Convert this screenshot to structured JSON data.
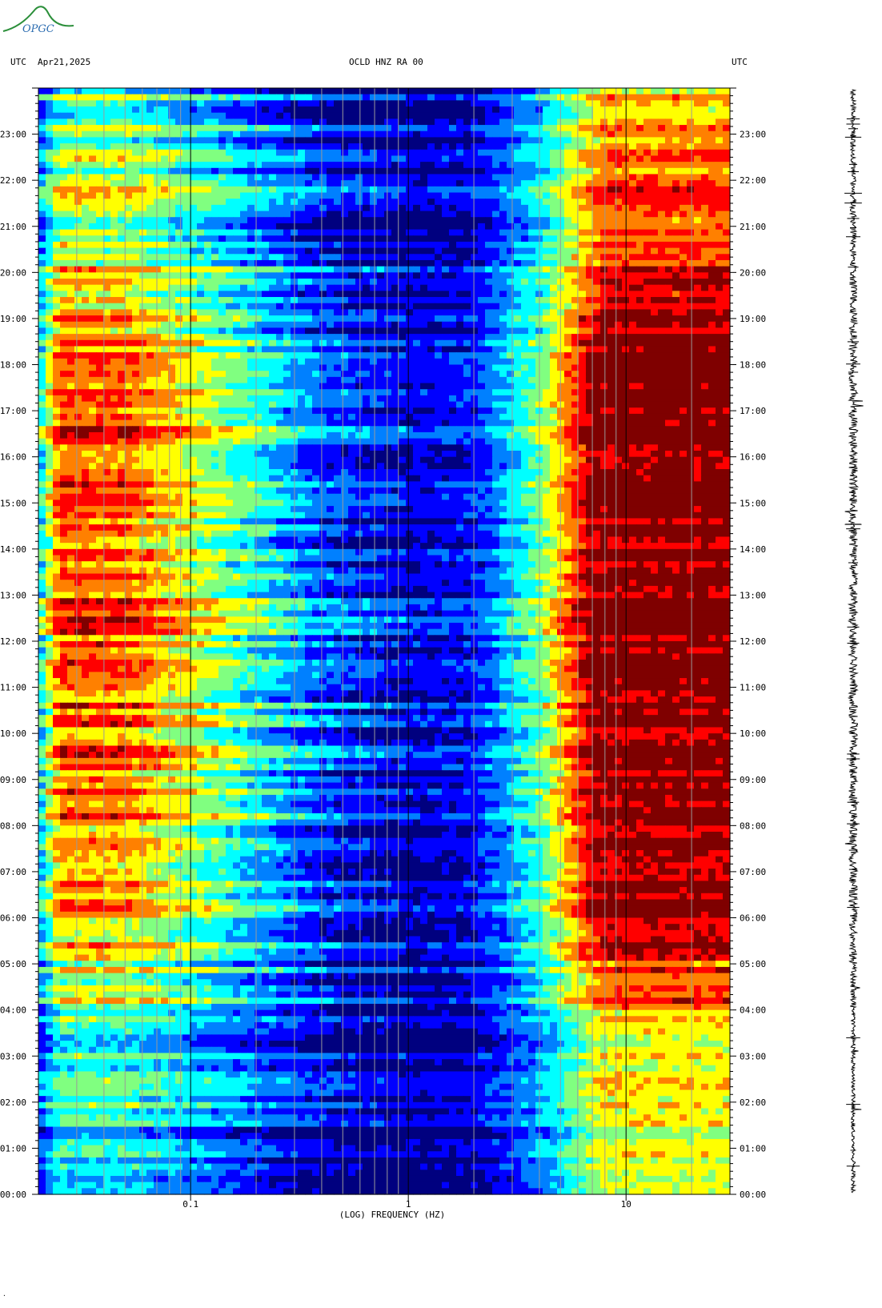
{
  "header": {
    "left_utc": "UTC",
    "date": "Apr21,2025",
    "station": "OCLD HNZ RA 00",
    "right_utc": "UTC"
  },
  "logo": {
    "text": "OPGC"
  },
  "colors": {
    "colormap": [
      "#00007f",
      "#0000ff",
      "#0080ff",
      "#00ffff",
      "#80ff80",
      "#ffff00",
      "#ff8000",
      "#ff0000",
      "#7f0000"
    ],
    "grid_line": "#9a9a9a",
    "decade_line": "#000000"
  },
  "chart_data": {
    "type": "heatmap",
    "xlabel": "(LOG) FREQUENCY (HZ)",
    "x_scale": "log",
    "xlim": [
      0.02,
      30
    ],
    "x_ticks": [
      {
        "value": 0.1,
        "label": "0.1"
      },
      {
        "value": 1,
        "label": "1"
      },
      {
        "value": 10,
        "label": "10"
      }
    ],
    "ylim": [
      0,
      24
    ],
    "y_unit": "hours UTC",
    "y_tick_labels": [
      "00:00",
      "01:00",
      "02:00",
      "03:00",
      "04:00",
      "05:00",
      "06:00",
      "07:00",
      "08:00",
      "09:00",
      "10:00",
      "11:00",
      "12:00",
      "13:00",
      "14:00",
      "15:00",
      "16:00",
      "17:00",
      "18:00",
      "19:00",
      "20:00",
      "21:00",
      "22:00",
      "23:00"
    ],
    "grid_frequencies": [
      0.03,
      0.04,
      0.05,
      0.06,
      0.07,
      0.08,
      0.09,
      0.2,
      0.3,
      0.4,
      0.5,
      0.6,
      0.7,
      0.8,
      0.9,
      2,
      3,
      4,
      5,
      6,
      7,
      8,
      9,
      20
    ],
    "band_profile": [
      {
        "frequency": 0.02,
        "level": 0.35
      },
      {
        "frequency": 0.025,
        "level": 0.82
      },
      {
        "frequency": 0.05,
        "level": 0.8
      },
      {
        "frequency": 0.1,
        "level": 0.62
      },
      {
        "frequency": 0.2,
        "level": 0.42
      },
      {
        "frequency": 0.4,
        "level": 0.22
      },
      {
        "frequency": 1,
        "level": 0.1
      },
      {
        "frequency": 2,
        "level": 0.14
      },
      {
        "frequency": 4,
        "level": 0.45
      },
      {
        "frequency": 6,
        "level": 0.78
      },
      {
        "frequency": 8,
        "level": 1.0
      },
      {
        "frequency": 30,
        "level": 1.0
      }
    ],
    "hourly_activity": [
      0.15,
      0.12,
      0.12,
      0.18,
      0.45,
      0.7,
      0.85,
      0.85,
      0.85,
      0.85,
      0.88,
      0.9,
      0.9,
      0.9,
      0.92,
      0.92,
      0.92,
      0.85,
      0.82,
      0.65,
      0.5,
      0.45,
      0.35,
      0.25
    ]
  }
}
